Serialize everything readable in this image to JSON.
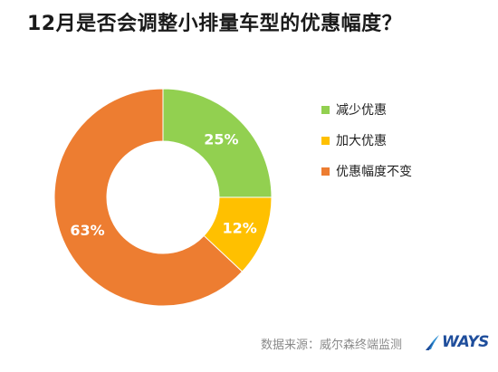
{
  "chart_data": {
    "type": "pie",
    "title": "12月是否会调整小排量车型的优惠幅度？",
    "categories": [
      "减少优惠",
      "加大优惠",
      "优惠幅度不变"
    ],
    "values": [
      25,
      12,
      63
    ],
    "value_labels": [
      "25%",
      "12%",
      "63%"
    ],
    "colors": [
      "#92d050",
      "#ffc000",
      "#ed7d31"
    ],
    "donut": true,
    "legend_position": "right"
  },
  "footer": {
    "source": "数据来源：威尔森终端监测",
    "logo_text": "WAYS"
  }
}
